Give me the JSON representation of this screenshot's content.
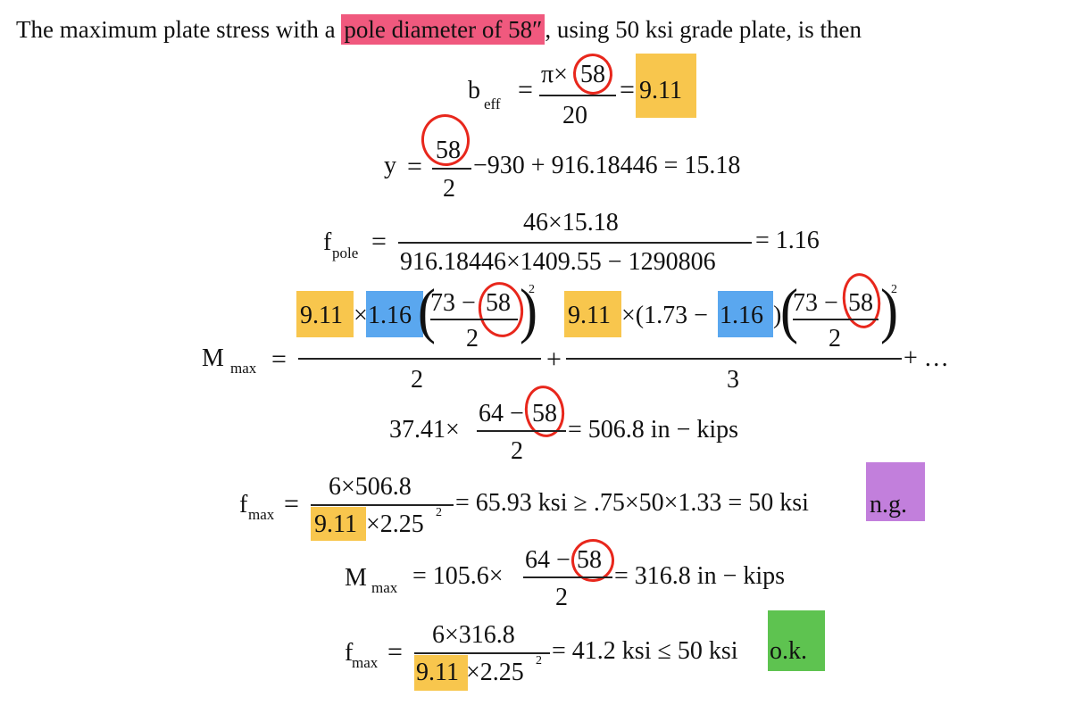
{
  "intro": {
    "before": "The maximum plate stress with a ",
    "highlight": "pole diameter of 58″",
    "after": ", using 50 ksi grade plate, is then"
  },
  "beff": {
    "b": "b",
    "sub": "eff",
    "eq": "=",
    "num_pi": "π×",
    "num_d": "58",
    "den": "20",
    "eq2": "=",
    "result": "9.11"
  },
  "y": {
    "lhs": "y",
    "eq": "=",
    "num": "58",
    "den": "2",
    "rest": "−930 + 916.18446 = 15.18"
  },
  "fpole": {
    "f": "f",
    "sub": "pole",
    "eq": "=",
    "num": "46×15.18",
    "den": "916.18446×1409.55 − 1290806",
    "result": "= 1.16"
  },
  "mmax1": {
    "M": "M",
    "sub": "max",
    "eq": "=",
    "t1_a": "9.11",
    "t1_times": "×",
    "t1_b": "1.16",
    "t1_inner_num_a": "73 −",
    "t1_inner_num_d": "58",
    "t1_inner_den": "2",
    "t1_exp": "2",
    "t1_den": "2",
    "plus": "+",
    "t2_a": "9.11",
    "t2_times": "×(1.73 −",
    "t2_b": "1.16",
    "t2_close": ")",
    "t2_inner_num_a": "73 −",
    "t2_inner_num_d": "58",
    "t2_inner_den": "2",
    "t2_exp": "2",
    "t2_den": "3",
    "tail": "+ …"
  },
  "moment_line": {
    "pre": "37.41×",
    "num_a": "64 −",
    "num_d": "58",
    "den": "2",
    "result": "= 506.8 in − kips"
  },
  "fmax1": {
    "f": "f",
    "sub": "max",
    "eq": "=",
    "num": "6×506.8",
    "den_a": "9.11",
    "den_b": "×2.25",
    "den_exp": "2",
    "result": "= 65.93 ksi ≥ .75×50×1.33 = 50 ksi",
    "verdict": "n.g."
  },
  "mmax2": {
    "M": "M",
    "sub": "max",
    "eq": "= 105.6×",
    "num_a": "64 −",
    "num_d": "58",
    "den": "2",
    "result": "= 316.8 in − kips"
  },
  "fmax2": {
    "f": "f",
    "sub": "max",
    "eq": "=",
    "num": "6×316.8",
    "den_a": "9.11",
    "den_b": "×2.25",
    "den_exp": "2",
    "result": "= 41.2 ksi ≤ 50 ksi",
    "verdict": "o.k."
  },
  "colors": {
    "pink": "#f0597e",
    "yellow": "#f8c64d",
    "blue": "#5aa7ef",
    "purple": "#c27fdc",
    "green": "#5ec350",
    "circle": "#e8271c"
  }
}
